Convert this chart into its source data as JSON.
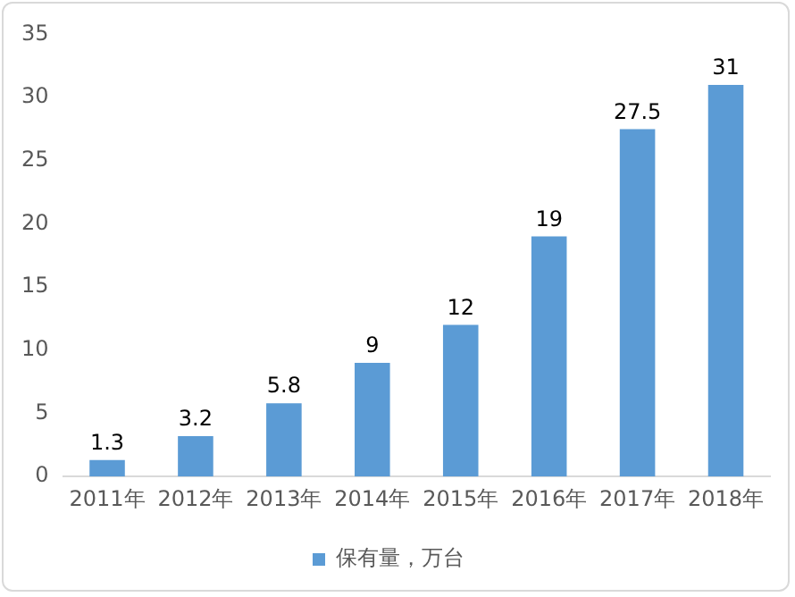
{
  "chart_data": {
    "type": "bar",
    "categories": [
      "2011年",
      "2012年",
      "2013年",
      "2014年",
      "2015年",
      "2016年",
      "2017年",
      "2018年"
    ],
    "series": [
      {
        "name": "保有量，万台",
        "color": "#5b9bd5",
        "values": [
          1.3,
          3.2,
          5.8,
          9,
          12,
          19,
          27.5,
          31
        ]
      }
    ],
    "ylim": [
      0,
      35
    ],
    "yticks": [
      0,
      5,
      10,
      15,
      20,
      25,
      30,
      35
    ],
    "grid": false,
    "legend": "bottom",
    "data_labels": true
  }
}
